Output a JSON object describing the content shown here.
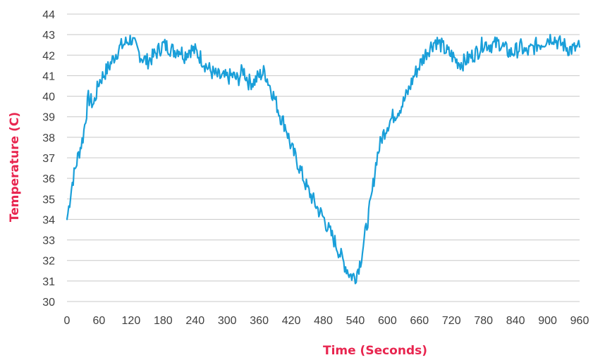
{
  "chart_data": {
    "type": "line",
    "title": "",
    "xlabel": "Time (Seconds)",
    "ylabel": "Temperature (C)",
    "xlim": [
      0,
      960
    ],
    "ylim": [
      30,
      44
    ],
    "x_ticks": [
      0,
      60,
      120,
      180,
      240,
      300,
      360,
      420,
      480,
      540,
      600,
      660,
      720,
      780,
      840,
      900,
      960
    ],
    "y_ticks": [
      30,
      31,
      32,
      33,
      34,
      35,
      36,
      37,
      38,
      39,
      40,
      41,
      42,
      43,
      44
    ],
    "grid": "horizontal",
    "legend": "none",
    "colors": {
      "line": "#1a9fd9",
      "axis_title": "#e8254f",
      "grid": "#c8c8c8",
      "tick_text": "#404040"
    },
    "series": [
      {
        "x": [
          0,
          10,
          20,
          30,
          40,
          50,
          60,
          70,
          80,
          90,
          100,
          110,
          120,
          130,
          140,
          150,
          160,
          170,
          180,
          190,
          200,
          210,
          220,
          230,
          240,
          250,
          260,
          270,
          280,
          290,
          300,
          310,
          320,
          330,
          340,
          350,
          360,
          370,
          380,
          390,
          400,
          410,
          420,
          430,
          440,
          450,
          460,
          470,
          480,
          490,
          500,
          510,
          520,
          530,
          540,
          550,
          560,
          570,
          580,
          590,
          600,
          610,
          620,
          630,
          640,
          650,
          660,
          670,
          680,
          690,
          700,
          710,
          720,
          730,
          740,
          750,
          760,
          770,
          780,
          790,
          800,
          810,
          820,
          830,
          840,
          850,
          860,
          870,
          880,
          890,
          900,
          910,
          920,
          930,
          940,
          950,
          960
        ],
        "y": [
          34.0,
          35.8,
          37.0,
          38.0,
          39.9,
          39.6,
          40.7,
          41.1,
          41.5,
          42.0,
          42.4,
          42.6,
          42.8,
          42.3,
          41.9,
          41.7,
          41.9,
          42.2,
          42.5,
          42.4,
          42.2,
          42.3,
          42.0,
          42.3,
          42.2,
          41.9,
          41.5,
          41.2,
          41.0,
          40.9,
          40.9,
          41.0,
          40.8,
          41.3,
          40.7,
          40.7,
          41.0,
          41.2,
          40.5,
          39.8,
          39.0,
          38.5,
          37.5,
          36.9,
          36.2,
          35.5,
          35.0,
          34.5,
          34.1,
          33.5,
          33.0,
          32.4,
          31.8,
          31.3,
          31.2,
          32.0,
          33.5,
          35.0,
          37.0,
          38.0,
          38.6,
          39.0,
          39.3,
          39.7,
          40.3,
          41.0,
          41.5,
          42.0,
          42.4,
          42.7,
          42.5,
          42.2,
          42.0,
          41.7,
          41.6,
          41.8,
          42.0,
          42.2,
          42.6,
          42.5,
          42.5,
          42.6,
          42.3,
          42.1,
          42.2,
          42.4,
          42.1,
          42.3,
          42.5,
          42.6,
          42.8,
          42.9,
          42.6,
          42.5,
          42.3,
          42.3,
          42.4
        ]
      }
    ]
  }
}
